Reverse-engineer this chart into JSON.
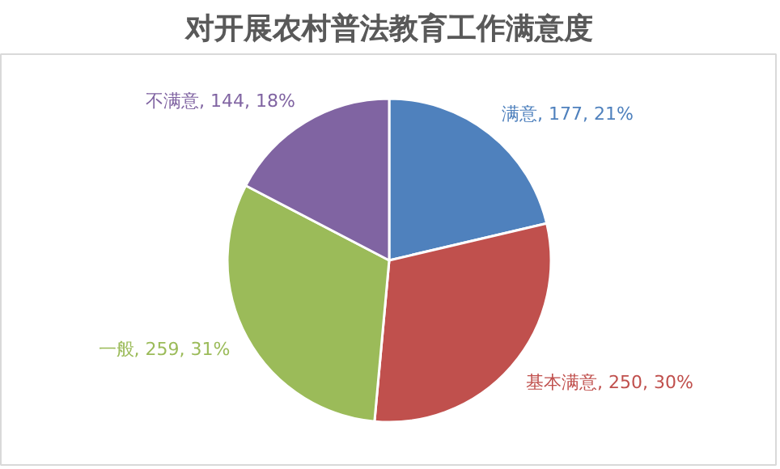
{
  "chart_data": {
    "type": "pie",
    "title": "对开展农村普法教育工作满意度",
    "categories": [
      "满意",
      "基本满意",
      "一般",
      "不满意"
    ],
    "values": [
      177,
      250,
      259,
      144
    ],
    "colors": [
      "#4f81bd",
      "#c0504d",
      "#9bbb59",
      "#8064a2"
    ],
    "value_labels": [
      "177, 21%",
      "250, 30%",
      "259, 31%",
      "144, 18%"
    ]
  }
}
